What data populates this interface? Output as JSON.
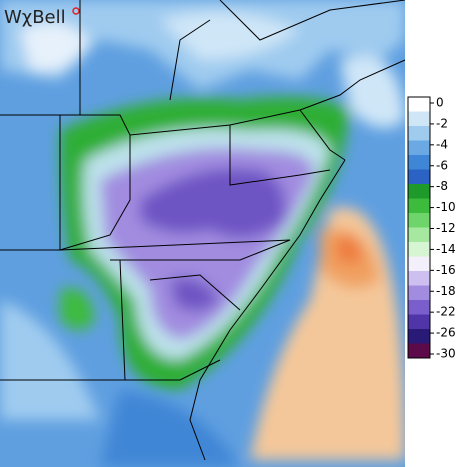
{
  "logo": {
    "text": "WχBell"
  },
  "legend": {
    "labels": [
      0,
      -2,
      -4,
      -6,
      -8,
      -10,
      -12,
      -14,
      -16,
      -18,
      -22,
      -26,
      -30
    ],
    "colors": [
      "#ffffff",
      "#cfe6f7",
      "#9fcbef",
      "#6aa9e4",
      "#3f86d6",
      "#2a63c4",
      "#1e9a2a",
      "#3dbb3d",
      "#6dd56a",
      "#a6e8a0",
      "#d6f5d2",
      "#f3f0fb",
      "#cdbff0",
      "#a18ce0",
      "#7a5fcc",
      "#4f35a8",
      "#2a1a78",
      "#5c0a4a"
    ]
  }
}
